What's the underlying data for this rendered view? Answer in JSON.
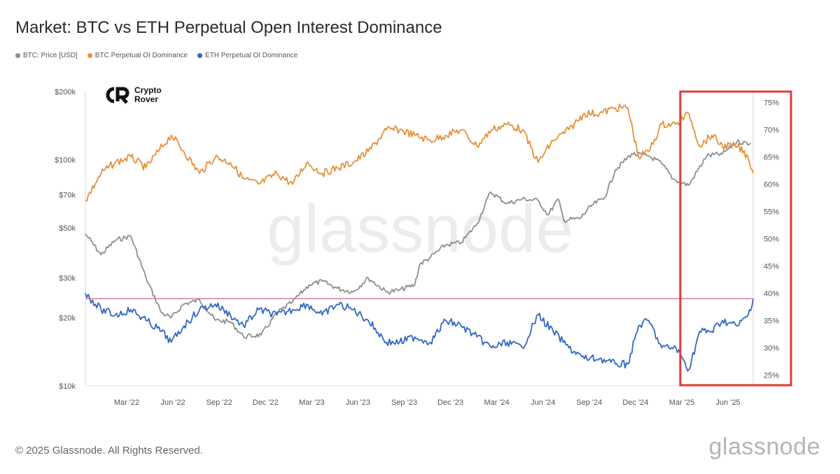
{
  "title": "Market: BTC vs ETH Perpetual Open Interest Dominance",
  "legend": [
    {
      "label": "BTC: Price [USD]",
      "color": "#8e8e8e"
    },
    {
      "label": "BTC Perpetual OI Dominance",
      "color": "#e6903a"
    },
    {
      "label": "ETH Perpetual OI Dominance",
      "color": "#2f68c4"
    }
  ],
  "watermark": "glassnode",
  "overlay_logo": {
    "line1": "Crypto",
    "line2": "Rover"
  },
  "footer": {
    "copyright": "© 2025 Glassnode. All Rights Reserved.",
    "brand": "glassnode"
  },
  "colors": {
    "btc_price": "#8e8e8e",
    "btc_dominance": "#e6903a",
    "eth_dominance": "#2f68c4",
    "reference_line": "#c86a8a",
    "highlight_box": "#e33a35"
  },
  "chart_data": {
    "type": "line",
    "title": "Market: BTC vs ETH Perpetual Open Interest Dominance",
    "x_tick_labels": [
      "Mar '22",
      "Jun '22",
      "Sep '22",
      "Dec '22",
      "Mar '23",
      "Jun '23",
      "Sep '23",
      "Dec '23",
      "Mar '24",
      "Jun '24",
      "Sep '24",
      "Dec '24",
      "Mar '25",
      "Jun '25"
    ],
    "x_range": [
      "2022-01-01",
      "2025-08-15"
    ],
    "left_axis": {
      "label": "BTC: Price [USD]",
      "scale": "log",
      "ticks": [
        "$10k",
        "$20k",
        "$30k",
        "$50k",
        "$70k",
        "$100k",
        "$200k"
      ],
      "tick_values": [
        10000,
        20000,
        30000,
        50000,
        70000,
        100000,
        200000
      ],
      "range": [
        10000,
        200000
      ]
    },
    "right_axis": {
      "label": "Perpetual OI Dominance",
      "ticks": [
        "25%",
        "30%",
        "35%",
        "40%",
        "45%",
        "50%",
        "55%",
        "60%",
        "65%",
        "70%",
        "75%"
      ],
      "tick_values": [
        25,
        30,
        35,
        40,
        45,
        50,
        55,
        60,
        65,
        70,
        75
      ],
      "range": [
        23,
        77
      ]
    },
    "reference_line": {
      "axis": "right",
      "value": 39
    },
    "highlight_range": [
      "2025-04-01",
      "2025-08-15"
    ],
    "series": [
      {
        "name": "BTC: Price [USD]",
        "axis": "left",
        "color": "#8e8e8e",
        "x": [
          "2022-01-01",
          "2022-02-01",
          "2022-03-01",
          "2022-04-01",
          "2022-05-01",
          "2022-06-01",
          "2022-06-20",
          "2022-07-15",
          "2022-08-15",
          "2022-09-15",
          "2022-10-15",
          "2022-11-10",
          "2022-12-15",
          "2023-01-15",
          "2023-02-15",
          "2023-03-20",
          "2023-04-15",
          "2023-05-15",
          "2023-06-15",
          "2023-07-15",
          "2023-08-20",
          "2023-09-15",
          "2023-10-15",
          "2023-10-25",
          "2023-11-15",
          "2023-12-15",
          "2024-01-15",
          "2024-02-15",
          "2024-03-13",
          "2024-04-15",
          "2024-05-15",
          "2024-06-15",
          "2024-07-05",
          "2024-07-25",
          "2024-08-05",
          "2024-09-06",
          "2024-09-30",
          "2024-10-25",
          "2024-11-15",
          "2024-12-17",
          "2025-01-20",
          "2025-02-15",
          "2025-03-10",
          "2025-04-09",
          "2025-05-15",
          "2025-06-15",
          "2025-07-14",
          "2025-08-10"
        ],
        "values": [
          47000,
          38000,
          44000,
          46000,
          30000,
          21000,
          20000,
          23000,
          24000,
          19500,
          19200,
          16500,
          16800,
          21000,
          23500,
          28000,
          29000,
          27000,
          26000,
          30000,
          26000,
          26500,
          28000,
          34500,
          37000,
          42000,
          43000,
          52000,
          72000,
          64000,
          67000,
          66000,
          57000,
          67000,
          54000,
          55000,
          63000,
          68000,
          90000,
          106000,
          104000,
          96000,
          82000,
          77000,
          104000,
          106000,
          120000,
          118000
        ]
      },
      {
        "name": "BTC Perpetual OI Dominance",
        "axis": "right",
        "color": "#e6903a",
        "x": [
          "2022-01-01",
          "2022-02-01",
          "2022-03-01",
          "2022-04-01",
          "2022-05-01",
          "2022-05-25",
          "2022-06-20",
          "2022-07-15",
          "2022-08-15",
          "2022-09-15",
          "2022-10-15",
          "2022-11-10",
          "2022-12-10",
          "2023-01-15",
          "2023-02-15",
          "2023-03-15",
          "2023-04-15",
          "2023-05-15",
          "2023-06-15",
          "2023-07-15",
          "2023-08-20",
          "2023-09-15",
          "2023-10-15",
          "2023-11-15",
          "2023-12-15",
          "2024-01-15",
          "2024-02-15",
          "2024-03-15",
          "2024-04-15",
          "2024-05-15",
          "2024-06-15",
          "2024-07-15",
          "2024-08-15",
          "2024-09-15",
          "2024-10-15",
          "2024-11-15",
          "2024-12-10",
          "2024-12-31",
          "2025-01-20",
          "2025-02-15",
          "2025-03-15",
          "2025-04-10",
          "2025-05-01",
          "2025-05-25",
          "2025-06-15",
          "2025-07-15",
          "2025-08-05",
          "2025-08-15"
        ],
        "values": [
          57,
          62,
          64,
          65,
          63,
          66,
          69,
          66,
          62,
          65,
          64,
          61,
          60,
          62,
          60,
          64,
          62,
          63,
          64,
          66,
          70,
          70,
          69,
          68,
          69,
          70,
          67,
          70,
          71,
          70,
          64,
          68,
          70,
          73,
          73,
          74,
          74,
          65,
          66,
          71,
          71,
          73,
          67,
          69,
          67,
          67,
          65,
          62
        ]
      },
      {
        "name": "ETH Perpetual OI Dominance",
        "axis": "right",
        "color": "#2f68c4",
        "x": [
          "2022-01-01",
          "2022-02-01",
          "2022-03-01",
          "2022-04-01",
          "2022-05-01",
          "2022-06-01",
          "2022-06-20",
          "2022-07-15",
          "2022-08-15",
          "2022-09-15",
          "2022-10-15",
          "2022-11-10",
          "2022-12-10",
          "2023-01-15",
          "2023-02-15",
          "2023-03-15",
          "2023-04-15",
          "2023-05-15",
          "2023-06-15",
          "2023-07-15",
          "2023-08-20",
          "2023-09-15",
          "2023-10-15",
          "2023-11-15",
          "2023-12-15",
          "2024-01-15",
          "2024-02-15",
          "2024-03-15",
          "2024-04-15",
          "2024-05-15",
          "2024-06-15",
          "2024-07-15",
          "2024-08-15",
          "2024-09-15",
          "2024-10-15",
          "2024-11-15",
          "2024-12-10",
          "2024-12-31",
          "2025-01-20",
          "2025-02-15",
          "2025-03-15",
          "2025-04-10",
          "2025-05-01",
          "2025-05-25",
          "2025-06-15",
          "2025-07-15",
          "2025-08-05",
          "2025-08-15"
        ],
        "values": [
          40,
          37,
          36,
          37,
          35,
          33,
          31,
          34,
          37,
          38,
          36,
          34,
          37,
          36,
          37,
          38,
          36,
          38,
          37,
          35,
          31,
          31,
          32,
          31,
          35,
          34,
          32,
          30,
          31,
          30,
          36,
          33,
          30,
          28,
          28,
          27,
          27,
          34,
          35,
          30,
          30,
          26,
          33,
          33,
          35,
          34,
          36,
          39
        ]
      }
    ]
  }
}
